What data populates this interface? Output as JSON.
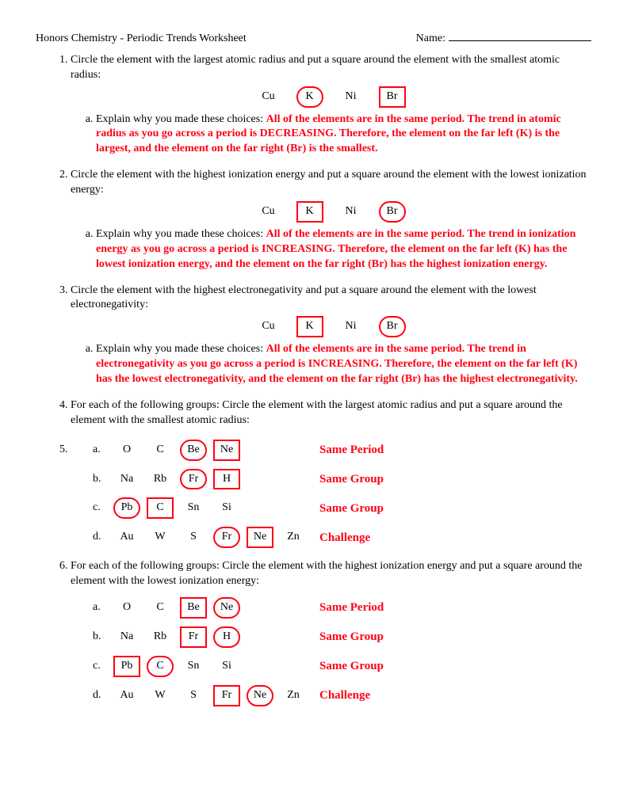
{
  "header": {
    "left": "Honors Chemistry - Periodic Trends Worksheet",
    "right_label": "Name:"
  },
  "colors": {
    "answer_red": "#ff0015",
    "text": "#000000",
    "bg": "#ffffff"
  },
  "q1": {
    "text": "Circle the element with the largest atomic radius and put a square around the element with the smallest atomic radius:",
    "elements": [
      {
        "sym": "Cu",
        "mark": "none"
      },
      {
        "sym": "K",
        "mark": "circle"
      },
      {
        "sym": "Ni",
        "mark": "none"
      },
      {
        "sym": "Br",
        "mark": "square"
      }
    ],
    "sub_prompt": "Explain why you made these choices:",
    "sub_answer": "All of the elements are in the same period.  The trend in atomic radius as you go across a period is DECREASING.  Therefore, the element on the far left (K) is the largest, and the element on the far right (Br) is the smallest."
  },
  "q2": {
    "text": "Circle the element with the highest ionization energy and put a square around the element with the lowest ionization energy:",
    "elements": [
      {
        "sym": "Cu",
        "mark": "none"
      },
      {
        "sym": "K",
        "mark": "square"
      },
      {
        "sym": "Ni",
        "mark": "none"
      },
      {
        "sym": "Br",
        "mark": "circle"
      }
    ],
    "sub_prompt": "Explain why you made these choices:",
    "sub_answer": "All of the elements are in the same period.  The trend in ionization energy as you go across a period is INCREASING.  Therefore, the element on the far left (K) has the lowest ionization energy, and the element on the far right (Br) has the highest ionization energy."
  },
  "q3": {
    "text": "Circle the element with the highest electronegativity and put a square around the element with the lowest electronegativity:",
    "elements": [
      {
        "sym": "Cu",
        "mark": "none"
      },
      {
        "sym": "K",
        "mark": "square"
      },
      {
        "sym": "Ni",
        "mark": "none"
      },
      {
        "sym": "Br",
        "mark": "circle"
      }
    ],
    "sub_prompt": "Explain why you made these choices:",
    "sub_answer": "All of the elements are in the same period.  The trend in electronegativity as you go across a period is INCREASING.  Therefore, the element on the far left (K) has the lowest electronegativity, and the element on the far right (Br) has the highest electronegativity."
  },
  "q4": {
    "text": "For each of the following groups: Circle the element with the largest atomic radius and put a square around the element with the smallest atomic radius:",
    "rows": [
      {
        "letter": "a.",
        "cells": [
          {
            "sym": "O"
          },
          {
            "sym": "C"
          },
          {
            "sym": "Be",
            "mark": "circle"
          },
          {
            "sym": "Ne",
            "mark": "square"
          },
          {
            "sym": ""
          },
          {
            "sym": ""
          }
        ],
        "tag": "Same Period"
      },
      {
        "letter": "b.",
        "cells": [
          {
            "sym": "Na"
          },
          {
            "sym": "Rb"
          },
          {
            "sym": "Fr",
            "mark": "circle"
          },
          {
            "sym": "H",
            "mark": "square"
          },
          {
            "sym": ""
          },
          {
            "sym": ""
          }
        ],
        "tag": "Same Group"
      },
      {
        "letter": "c.",
        "cells": [
          {
            "sym": "Pb",
            "mark": "circle"
          },
          {
            "sym": "C",
            "mark": "square"
          },
          {
            "sym": "Sn"
          },
          {
            "sym": "Si"
          },
          {
            "sym": ""
          },
          {
            "sym": ""
          }
        ],
        "tag": "Same Group"
      },
      {
        "letter": "d.",
        "cells": [
          {
            "sym": "Au"
          },
          {
            "sym": "W"
          },
          {
            "sym": "S"
          },
          {
            "sym": "Fr",
            "mark": "circle"
          },
          {
            "sym": "Ne",
            "mark": "square"
          },
          {
            "sym": "Zn"
          }
        ],
        "tag": "Challenge"
      }
    ]
  },
  "q6": {
    "text": "For each of the following groups: Circle the element with the highest ionization energy and put a square around the element with the lowest ionization energy:",
    "rows": [
      {
        "letter": "a.",
        "cells": [
          {
            "sym": "O"
          },
          {
            "sym": "C"
          },
          {
            "sym": "Be",
            "mark": "square"
          },
          {
            "sym": "Ne",
            "mark": "circle"
          },
          {
            "sym": ""
          },
          {
            "sym": ""
          }
        ],
        "tag": "Same Period"
      },
      {
        "letter": "b.",
        "cells": [
          {
            "sym": "Na"
          },
          {
            "sym": "Rb"
          },
          {
            "sym": "Fr",
            "mark": "square"
          },
          {
            "sym": "H",
            "mark": "circle"
          },
          {
            "sym": ""
          },
          {
            "sym": ""
          }
        ],
        "tag": "Same Group"
      },
      {
        "letter": "c.",
        "cells": [
          {
            "sym": "Pb",
            "mark": "square"
          },
          {
            "sym": "C",
            "mark": "circle"
          },
          {
            "sym": "Sn"
          },
          {
            "sym": "Si"
          },
          {
            "sym": ""
          },
          {
            "sym": ""
          }
        ],
        "tag": "Same Group"
      },
      {
        "letter": "d.",
        "cells": [
          {
            "sym": "Au"
          },
          {
            "sym": "W"
          },
          {
            "sym": "S"
          },
          {
            "sym": "Fr",
            "mark": "square"
          },
          {
            "sym": "Ne",
            "mark": "circle"
          },
          {
            "sym": "Zn"
          }
        ],
        "tag": "Challenge"
      }
    ]
  }
}
